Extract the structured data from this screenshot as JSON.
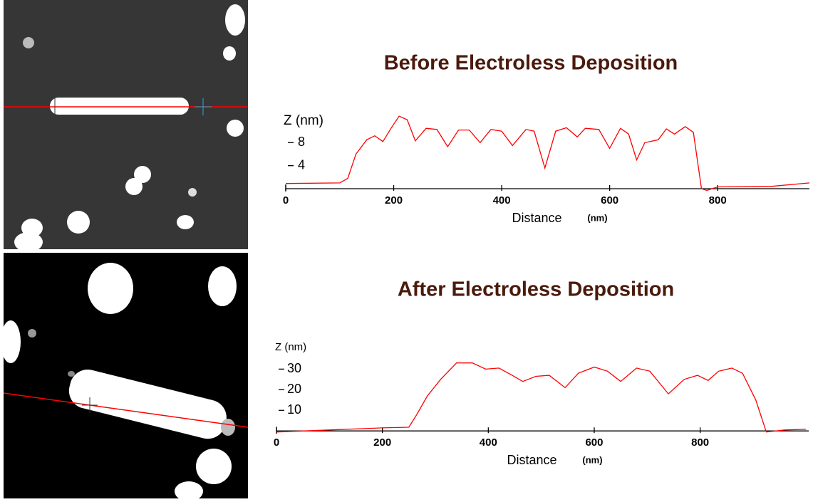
{
  "chart_data": [
    {
      "type": "line",
      "title": "Before Electroless Deposition",
      "y_label": "Z (nm)",
      "x_label": "Distance",
      "x_unit": "(nm)",
      "color": "#ff0000",
      "x": [
        0,
        100,
        115,
        130,
        150,
        165,
        180,
        195,
        210,
        225,
        240,
        260,
        280,
        300,
        320,
        340,
        360,
        380,
        400,
        420,
        445,
        460,
        480,
        500,
        520,
        540,
        555,
        580,
        600,
        620,
        635,
        650,
        665,
        690,
        705,
        720,
        740,
        755,
        770,
        780,
        800,
        900,
        970
      ],
      "values": [
        0.9,
        1.0,
        1.8,
        6,
        8.5,
        9.2,
        8.2,
        10.5,
        12.6,
        12,
        8.3,
        10.5,
        10.3,
        7.3,
        10.2,
        10.2,
        8,
        10.3,
        10,
        7.5,
        10.3,
        10,
        3.6,
        10,
        10.6,
        9,
        10.5,
        10.3,
        7,
        10.5,
        9.5,
        5,
        8,
        8.5,
        10.4,
        9.5,
        10.8,
        9.8,
        0,
        -0.3,
        0.3,
        0.4,
        1
      ],
      "xlim": [
        0,
        970
      ],
      "ylim": [
        -0.5,
        13
      ],
      "xticks": [
        0,
        200,
        400,
        600,
        800
      ],
      "yticks": [
        4,
        8
      ]
    },
    {
      "type": "line",
      "title": "After Electroless Deposition",
      "y_label": "Z (nm)",
      "x_label": "Distance",
      "x_unit": "(nm)",
      "color": "#ff0000",
      "x": [
        0,
        100,
        200,
        250,
        265,
        285,
        310,
        340,
        370,
        395,
        420,
        445,
        465,
        490,
        515,
        545,
        570,
        600,
        625,
        650,
        680,
        705,
        740,
        770,
        795,
        815,
        835,
        860,
        880,
        905,
        925,
        960,
        1000
      ],
      "values": [
        -0.5,
        0.5,
        1.5,
        1.8,
        8,
        17,
        25,
        33,
        33,
        30,
        30.5,
        27,
        24,
        26.5,
        27,
        21,
        28,
        31,
        29,
        24,
        30.5,
        29,
        18,
        25,
        27,
        24.5,
        29,
        30.5,
        28,
        15,
        -0.5,
        0.5,
        0.8
      ],
      "xlim": [
        0,
        1005
      ],
      "ylim": [
        -2,
        36
      ],
      "xticks": [
        0,
        200,
        400,
        600,
        800
      ],
      "yticks": [
        10,
        20,
        30
      ]
    }
  ]
}
